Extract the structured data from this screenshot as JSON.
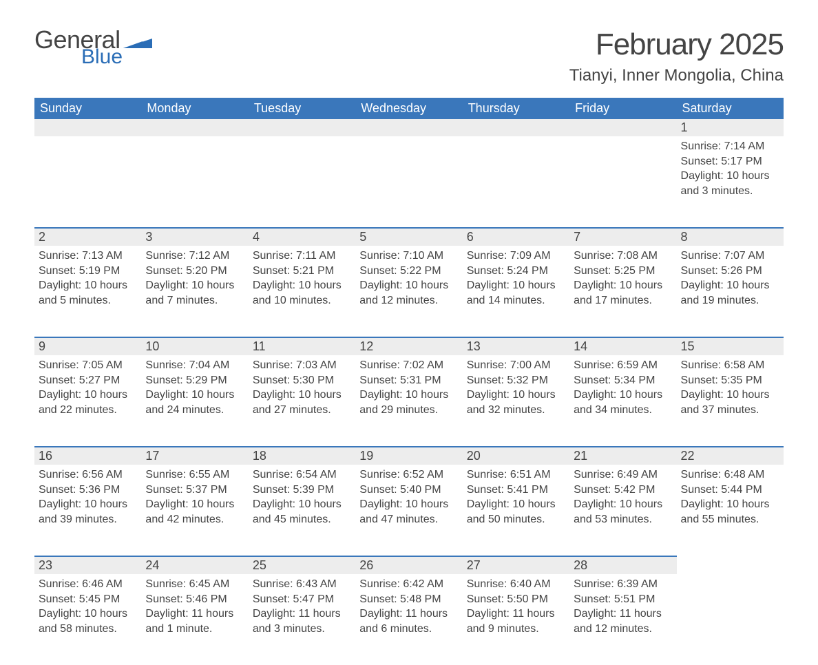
{
  "logo": {
    "general": "General",
    "blue": "Blue"
  },
  "month_title": "February 2025",
  "location": "Tianyi, Inner Mongolia, China",
  "colors": {
    "header_bg": "#3a77bb",
    "header_text": "#ffffff",
    "daynum_bg": "#ededed",
    "border": "#3a77bb",
    "text": "#444444",
    "logo_blue": "#2a6db6",
    "page_bg": "#ffffff"
  },
  "weekday_headers": [
    "Sunday",
    "Monday",
    "Tuesday",
    "Wednesday",
    "Thursday",
    "Friday",
    "Saturday"
  ],
  "weeks": [
    [
      null,
      null,
      null,
      null,
      null,
      null,
      {
        "day": "1",
        "sunrise": "Sunrise: 7:14 AM",
        "sunset": "Sunset: 5:17 PM",
        "daylight": "Daylight: 10 hours and 3 minutes."
      }
    ],
    [
      {
        "day": "2",
        "sunrise": "Sunrise: 7:13 AM",
        "sunset": "Sunset: 5:19 PM",
        "daylight": "Daylight: 10 hours and 5 minutes."
      },
      {
        "day": "3",
        "sunrise": "Sunrise: 7:12 AM",
        "sunset": "Sunset: 5:20 PM",
        "daylight": "Daylight: 10 hours and 7 minutes."
      },
      {
        "day": "4",
        "sunrise": "Sunrise: 7:11 AM",
        "sunset": "Sunset: 5:21 PM",
        "daylight": "Daylight: 10 hours and 10 minutes."
      },
      {
        "day": "5",
        "sunrise": "Sunrise: 7:10 AM",
        "sunset": "Sunset: 5:22 PM",
        "daylight": "Daylight: 10 hours and 12 minutes."
      },
      {
        "day": "6",
        "sunrise": "Sunrise: 7:09 AM",
        "sunset": "Sunset: 5:24 PM",
        "daylight": "Daylight: 10 hours and 14 minutes."
      },
      {
        "day": "7",
        "sunrise": "Sunrise: 7:08 AM",
        "sunset": "Sunset: 5:25 PM",
        "daylight": "Daylight: 10 hours and 17 minutes."
      },
      {
        "day": "8",
        "sunrise": "Sunrise: 7:07 AM",
        "sunset": "Sunset: 5:26 PM",
        "daylight": "Daylight: 10 hours and 19 minutes."
      }
    ],
    [
      {
        "day": "9",
        "sunrise": "Sunrise: 7:05 AM",
        "sunset": "Sunset: 5:27 PM",
        "daylight": "Daylight: 10 hours and 22 minutes."
      },
      {
        "day": "10",
        "sunrise": "Sunrise: 7:04 AM",
        "sunset": "Sunset: 5:29 PM",
        "daylight": "Daylight: 10 hours and 24 minutes."
      },
      {
        "day": "11",
        "sunrise": "Sunrise: 7:03 AM",
        "sunset": "Sunset: 5:30 PM",
        "daylight": "Daylight: 10 hours and 27 minutes."
      },
      {
        "day": "12",
        "sunrise": "Sunrise: 7:02 AM",
        "sunset": "Sunset: 5:31 PM",
        "daylight": "Daylight: 10 hours and 29 minutes."
      },
      {
        "day": "13",
        "sunrise": "Sunrise: 7:00 AM",
        "sunset": "Sunset: 5:32 PM",
        "daylight": "Daylight: 10 hours and 32 minutes."
      },
      {
        "day": "14",
        "sunrise": "Sunrise: 6:59 AM",
        "sunset": "Sunset: 5:34 PM",
        "daylight": "Daylight: 10 hours and 34 minutes."
      },
      {
        "day": "15",
        "sunrise": "Sunrise: 6:58 AM",
        "sunset": "Sunset: 5:35 PM",
        "daylight": "Daylight: 10 hours and 37 minutes."
      }
    ],
    [
      {
        "day": "16",
        "sunrise": "Sunrise: 6:56 AM",
        "sunset": "Sunset: 5:36 PM",
        "daylight": "Daylight: 10 hours and 39 minutes."
      },
      {
        "day": "17",
        "sunrise": "Sunrise: 6:55 AM",
        "sunset": "Sunset: 5:37 PM",
        "daylight": "Daylight: 10 hours and 42 minutes."
      },
      {
        "day": "18",
        "sunrise": "Sunrise: 6:54 AM",
        "sunset": "Sunset: 5:39 PM",
        "daylight": "Daylight: 10 hours and 45 minutes."
      },
      {
        "day": "19",
        "sunrise": "Sunrise: 6:52 AM",
        "sunset": "Sunset: 5:40 PM",
        "daylight": "Daylight: 10 hours and 47 minutes."
      },
      {
        "day": "20",
        "sunrise": "Sunrise: 6:51 AM",
        "sunset": "Sunset: 5:41 PM",
        "daylight": "Daylight: 10 hours and 50 minutes."
      },
      {
        "day": "21",
        "sunrise": "Sunrise: 6:49 AM",
        "sunset": "Sunset: 5:42 PM",
        "daylight": "Daylight: 10 hours and 53 minutes."
      },
      {
        "day": "22",
        "sunrise": "Sunrise: 6:48 AM",
        "sunset": "Sunset: 5:44 PM",
        "daylight": "Daylight: 10 hours and 55 minutes."
      }
    ],
    [
      {
        "day": "23",
        "sunrise": "Sunrise: 6:46 AM",
        "sunset": "Sunset: 5:45 PM",
        "daylight": "Daylight: 10 hours and 58 minutes."
      },
      {
        "day": "24",
        "sunrise": "Sunrise: 6:45 AM",
        "sunset": "Sunset: 5:46 PM",
        "daylight": "Daylight: 11 hours and 1 minute."
      },
      {
        "day": "25",
        "sunrise": "Sunrise: 6:43 AM",
        "sunset": "Sunset: 5:47 PM",
        "daylight": "Daylight: 11 hours and 3 minutes."
      },
      {
        "day": "26",
        "sunrise": "Sunrise: 6:42 AM",
        "sunset": "Sunset: 5:48 PM",
        "daylight": "Daylight: 11 hours and 6 minutes."
      },
      {
        "day": "27",
        "sunrise": "Sunrise: 6:40 AM",
        "sunset": "Sunset: 5:50 PM",
        "daylight": "Daylight: 11 hours and 9 minutes."
      },
      {
        "day": "28",
        "sunrise": "Sunrise: 6:39 AM",
        "sunset": "Sunset: 5:51 PM",
        "daylight": "Daylight: 11 hours and 12 minutes."
      },
      null
    ]
  ]
}
